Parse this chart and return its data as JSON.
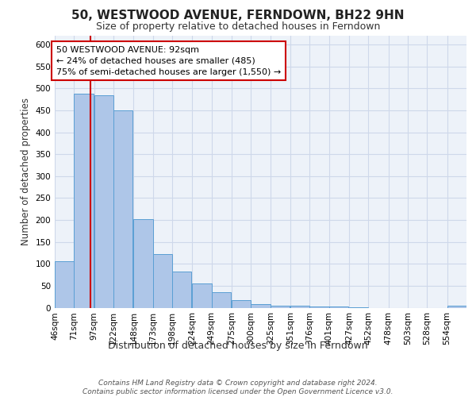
{
  "title": "50, WESTWOOD AVENUE, FERNDOWN, BH22 9HN",
  "subtitle": "Size of property relative to detached houses in Ferndown",
  "xlabel": "Distribution of detached houses by size in Ferndown",
  "ylabel": "Number of detached properties",
  "bin_labels": [
    "46sqm",
    "71sqm",
    "97sqm",
    "122sqm",
    "148sqm",
    "173sqm",
    "198sqm",
    "224sqm",
    "249sqm",
    "275sqm",
    "300sqm",
    "325sqm",
    "351sqm",
    "376sqm",
    "401sqm",
    "427sqm",
    "452sqm",
    "478sqm",
    "503sqm",
    "528sqm",
    "554sqm"
  ],
  "bin_edges": [
    46,
    71,
    97,
    122,
    148,
    173,
    198,
    224,
    249,
    275,
    300,
    325,
    351,
    376,
    401,
    427,
    452,
    478,
    503,
    528,
    554
  ],
  "bar_heights": [
    105,
    487,
    485,
    450,
    202,
    122,
    83,
    55,
    35,
    17,
    8,
    5,
    5,
    2,
    2,
    1,
    0,
    0,
    0,
    0,
    5
  ],
  "bar_color": "#aec6e8",
  "bar_edge_color": "#5a9fd4",
  "property_size": 92,
  "vline_color": "#cc0000",
  "annotation_line1": "50 WESTWOOD AVENUE: 92sqm",
  "annotation_line2": "← 24% of detached houses are smaller (485)",
  "annotation_line3": "75% of semi-detached houses are larger (1,550) →",
  "annotation_box_edge": "#cc0000",
  "annotation_box_face": "#ffffff",
  "ylim": [
    0,
    620
  ],
  "yticks": [
    0,
    50,
    100,
    150,
    200,
    250,
    300,
    350,
    400,
    450,
    500,
    550,
    600
  ],
  "grid_color": "#ced8ea",
  "background_color": "#edf2f9",
  "footer_text": "Contains HM Land Registry data © Crown copyright and database right 2024.\nContains public sector information licensed under the Open Government Licence v3.0.",
  "title_fontsize": 11,
  "subtitle_fontsize": 9,
  "xlabel_fontsize": 9,
  "ylabel_fontsize": 8.5,
  "tick_fontsize": 7.5,
  "annotation_fontsize": 8,
  "footer_fontsize": 6.5
}
